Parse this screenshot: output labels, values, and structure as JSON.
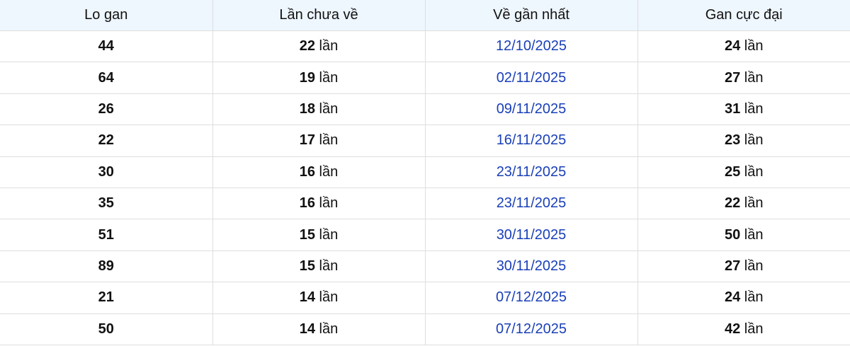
{
  "table": {
    "headers": [
      "Lo gan",
      "Lần chưa về",
      "Về gần nhất",
      "Gan cực đại"
    ],
    "unit": "lần",
    "date_color": "#1a3fb8",
    "header_bg": "#eef6fe",
    "rows": [
      {
        "number": "44",
        "absent": "22",
        "last_seen": "12/10/2025",
        "max_gap": "24"
      },
      {
        "number": "64",
        "absent": "19",
        "last_seen": "02/11/2025",
        "max_gap": "27"
      },
      {
        "number": "26",
        "absent": "18",
        "last_seen": "09/11/2025",
        "max_gap": "31"
      },
      {
        "number": "22",
        "absent": "17",
        "last_seen": "16/11/2025",
        "max_gap": "23"
      },
      {
        "number": "30",
        "absent": "16",
        "last_seen": "23/11/2025",
        "max_gap": "25"
      },
      {
        "number": "35",
        "absent": "16",
        "last_seen": "23/11/2025",
        "max_gap": "22"
      },
      {
        "number": "51",
        "absent": "15",
        "last_seen": "30/11/2025",
        "max_gap": "50"
      },
      {
        "number": "89",
        "absent": "15",
        "last_seen": "30/11/2025",
        "max_gap": "27"
      },
      {
        "number": "21",
        "absent": "14",
        "last_seen": "07/12/2025",
        "max_gap": "24"
      },
      {
        "number": "50",
        "absent": "14",
        "last_seen": "07/12/2025",
        "max_gap": "42"
      }
    ]
  }
}
